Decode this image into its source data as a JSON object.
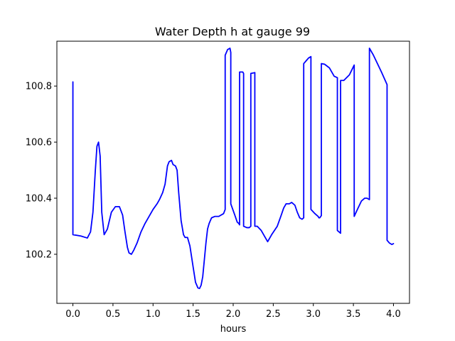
{
  "chart_data": {
    "type": "line",
    "title": "Water Depth h at gauge 99",
    "xlabel": "hours",
    "ylabel": "",
    "xlim": [
      -0.2,
      4.2
    ],
    "ylim": [
      100.025,
      100.96
    ],
    "xticks": [
      0.0,
      0.5,
      1.0,
      1.5,
      2.0,
      2.5,
      3.0,
      3.5,
      4.0
    ],
    "xtick_labels": [
      "0.0",
      "0.5",
      "1.0",
      "1.5",
      "2.0",
      "2.5",
      "3.0",
      "3.5",
      "4.0"
    ],
    "yticks": [
      100.2,
      100.4,
      100.6,
      100.8
    ],
    "ytick_labels": [
      "100.2",
      "100.4",
      "100.6",
      "100.8"
    ],
    "grid": false,
    "legend": "none",
    "series": [
      {
        "color": "#0000ff",
        "x": [
          0.0,
          0.0,
          0.0,
          0.1,
          0.18,
          0.22,
          0.25,
          0.28,
          0.3,
          0.32,
          0.34,
          0.36,
          0.39,
          0.43,
          0.48,
          0.53,
          0.58,
          0.62,
          0.65,
          0.68,
          0.7,
          0.73,
          0.76,
          0.8,
          0.85,
          0.9,
          0.95,
          1.0,
          1.05,
          1.08,
          1.12,
          1.15,
          1.18,
          1.2,
          1.23,
          1.25,
          1.28,
          1.3,
          1.32,
          1.35,
          1.38,
          1.4,
          1.43,
          1.46,
          1.5,
          1.53,
          1.56,
          1.58,
          1.6,
          1.62,
          1.64,
          1.66,
          1.68,
          1.7,
          1.73,
          1.77,
          1.82,
          1.88,
          1.9,
          1.9,
          1.93,
          1.96,
          1.97,
          1.97,
          2.02,
          2.05,
          2.07,
          2.08,
          2.08,
          2.12,
          2.13,
          2.13,
          2.17,
          2.2,
          2.22,
          2.22,
          2.27,
          2.27,
          2.3,
          2.3,
          2.35,
          2.4,
          2.43,
          2.48,
          2.55,
          2.6,
          2.63,
          2.66,
          2.7,
          2.73,
          2.77,
          2.8,
          2.83,
          2.86,
          2.88,
          2.88,
          2.91,
          2.94,
          2.97,
          2.97,
          3.02,
          3.06,
          3.07,
          3.08,
          3.1,
          3.1,
          3.14,
          3.2,
          3.26,
          3.3,
          3.3,
          3.34,
          3.34,
          3.38,
          3.45,
          3.51,
          3.51,
          3.55,
          3.6,
          3.64,
          3.67,
          3.7,
          3.7,
          3.75,
          3.85,
          3.92,
          3.92,
          3.95,
          3.98,
          4.0
        ],
        "y": [
          100.815,
          100.27,
          100.27,
          100.265,
          100.258,
          100.28,
          100.35,
          100.5,
          100.585,
          100.6,
          100.55,
          100.35,
          100.27,
          100.29,
          100.35,
          100.37,
          100.37,
          100.34,
          100.28,
          100.225,
          100.205,
          100.2,
          100.215,
          100.24,
          100.28,
          100.31,
          100.335,
          100.36,
          100.38,
          100.395,
          100.42,
          100.45,
          100.515,
          100.53,
          100.535,
          100.52,
          100.515,
          100.5,
          100.42,
          100.32,
          100.27,
          100.26,
          100.26,
          100.23,
          100.155,
          100.1,
          100.08,
          100.078,
          100.09,
          100.12,
          100.18,
          100.24,
          100.29,
          100.31,
          100.33,
          100.335,
          100.335,
          100.345,
          100.36,
          100.91,
          100.93,
          100.935,
          100.92,
          100.38,
          100.34,
          100.315,
          100.31,
          100.305,
          100.85,
          100.85,
          100.845,
          100.3,
          100.295,
          100.295,
          100.3,
          100.845,
          100.848,
          100.3,
          100.3,
          100.3,
          100.285,
          100.26,
          100.245,
          100.27,
          100.3,
          100.34,
          100.365,
          100.38,
          100.38,
          100.385,
          100.375,
          100.35,
          100.33,
          100.325,
          100.33,
          100.88,
          100.89,
          100.9,
          100.905,
          100.36,
          100.345,
          100.335,
          100.33,
          100.33,
          100.338,
          100.88,
          100.878,
          100.865,
          100.835,
          100.83,
          100.285,
          100.275,
          100.82,
          100.82,
          100.84,
          100.875,
          100.335,
          100.36,
          100.39,
          100.4,
          100.4,
          100.395,
          100.935,
          100.91,
          100.85,
          100.805,
          100.25,
          100.24,
          100.235,
          100.238
        ]
      }
    ]
  }
}
